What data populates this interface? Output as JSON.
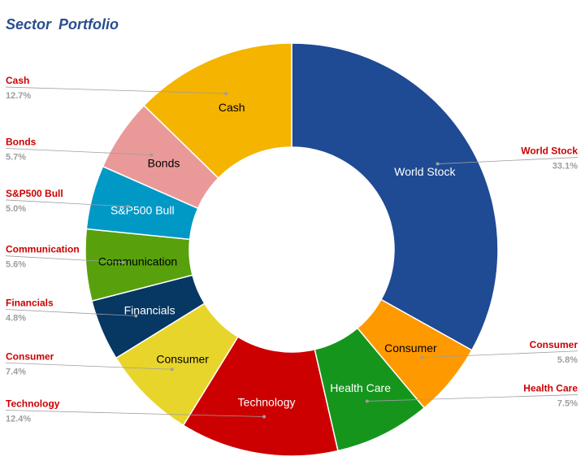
{
  "chart_data": {
    "type": "pie",
    "style": "donut",
    "title": "Sector Portfolio",
    "series": [
      {
        "label": "World Stock",
        "value": 33.1,
        "value_label": "33.1%",
        "color": "#1f4a94",
        "text_color": "#ffffff"
      },
      {
        "label": "Consumer",
        "value": 5.8,
        "value_label": "5.8%",
        "color": "#ff9900",
        "text_color": "#000000"
      },
      {
        "label": "Health Care",
        "value": 7.5,
        "value_label": "7.5%",
        "color": "#16951d",
        "text_color": "#ffffff"
      },
      {
        "label": "Technology",
        "value": 12.4,
        "value_label": "12.4%",
        "color": "#cc0000",
        "text_color": "#ffffff"
      },
      {
        "label": "Consumer",
        "value": 7.4,
        "value_label": "7.4%",
        "color": "#e8d52b",
        "text_color": "#000000"
      },
      {
        "label": "Financials",
        "value": 4.8,
        "value_label": "4.8%",
        "color": "#073763",
        "text_color": "#ffffff"
      },
      {
        "label": "Communication",
        "value": 5.6,
        "value_label": "5.6%",
        "color": "#58a10d",
        "text_color": "#000000"
      },
      {
        "label": "S&P500 Bull",
        "value": 5.0,
        "value_label": "5.0%",
        "color": "#0099c6",
        "text_color": "#ffffff"
      },
      {
        "label": "Bonds",
        "value": 5.7,
        "value_label": "5.7%",
        "color": "#ea9999",
        "text_color": "#000000"
      },
      {
        "label": "Cash",
        "value": 12.7,
        "value_label": "12.7%",
        "color": "#f4b400",
        "text_color": "#000000"
      }
    ],
    "legend": "callouts",
    "grid": false
  }
}
